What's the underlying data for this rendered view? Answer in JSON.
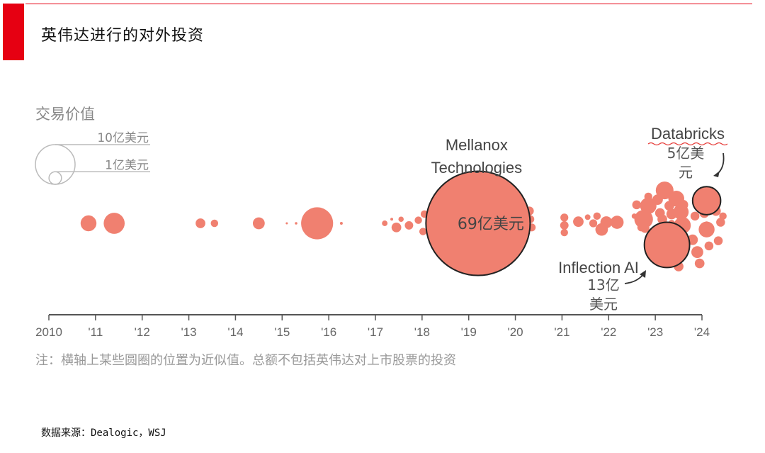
{
  "page": {
    "title": "英伟达进行的对外投资"
  },
  "source": "数据来源：Dealogic，WSJ",
  "colors": {
    "accent": "#e60012",
    "bubble": "#f08070",
    "outline": "#222222",
    "axis": "#555555",
    "text_gray": "#888888",
    "legend_gray": "#bbbbbb"
  },
  "chart_data": {
    "type": "bubble",
    "title": "",
    "size_label": "交易价值",
    "size_legend": [
      {
        "label": "10亿美元",
        "value_usd_bn": 1
      },
      {
        "label": "1亿美元",
        "value_usd_bn": 0.1
      }
    ],
    "xlim": [
      2010,
      2024
    ],
    "x_ticks": [
      "2010",
      "'11",
      "'12",
      "'13",
      "'14",
      "'15",
      "'16",
      "'17",
      "'18",
      "'19",
      "'20",
      "'21",
      "'22",
      "'23",
      "'24"
    ],
    "note": "注：横轴上某些圆圈的位置为近似值。总额不包括英伟达对上市股票的投资",
    "highlights": [
      {
        "name": "Mellanox Technologies",
        "name_lines": [
          "Mellanox",
          "Technologies"
        ],
        "value_label": "69亿美元",
        "x": 2019.2,
        "y": 0,
        "value_usd_bn": 6.9
      },
      {
        "name": "Databricks",
        "name_lines": [
          "Databricks"
        ],
        "value_label": "5亿美元",
        "value_lines": [
          "5亿美",
          "元"
        ],
        "x": 2024.1,
        "y": 1.1,
        "value_usd_bn": 0.5
      },
      {
        "name": "Inflection AI",
        "name_lines": [
          "Inflection AI"
        ],
        "value_label": "13亿美元",
        "value_lines": [
          "13亿",
          "美元"
        ],
        "x": 2023.25,
        "y": -1.05,
        "value_usd_bn": 1.3
      }
    ],
    "deals": [
      {
        "x": 2010.85,
        "y": 0,
        "value_usd_bn": 0.16
      },
      {
        "x": 2011.4,
        "y": 0,
        "value_usd_bn": 0.28
      },
      {
        "x": 2013.25,
        "y": 0,
        "value_usd_bn": 0.06
      },
      {
        "x": 2013.55,
        "y": 0,
        "value_usd_bn": 0.035
      },
      {
        "x": 2014.5,
        "y": 0,
        "value_usd_bn": 0.09
      },
      {
        "x": 2015.1,
        "y": 0,
        "value_usd_bn": 0.003
      },
      {
        "x": 2015.3,
        "y": 0,
        "value_usd_bn": 0.004
      },
      {
        "x": 2015.75,
        "y": 0,
        "value_usd_bn": 0.65
      },
      {
        "x": 2016.27,
        "y": 0,
        "value_usd_bn": 0.005
      },
      {
        "x": 2017.2,
        "y": 0,
        "value_usd_bn": 0.02
      },
      {
        "x": 2017.35,
        "y": 0.2,
        "value_usd_bn": 0.005
      },
      {
        "x": 2017.45,
        "y": -0.2,
        "value_usd_bn": 0.06
      },
      {
        "x": 2017.55,
        "y": 0.2,
        "value_usd_bn": 0.018
      },
      {
        "x": 2017.72,
        "y": -0.1,
        "value_usd_bn": 0.045
      },
      {
        "x": 2017.92,
        "y": 0.15,
        "value_usd_bn": 0.035
      },
      {
        "x": 2018.02,
        "y": -0.4,
        "value_usd_bn": 0.035
      },
      {
        "x": 2018.05,
        "y": 0.45,
        "value_usd_bn": 0.035
      },
      {
        "x": 2020.3,
        "y": 0.6,
        "value_usd_bn": 0.05
      },
      {
        "x": 2020.32,
        "y": 0.2,
        "value_usd_bn": 0.04
      },
      {
        "x": 2020.35,
        "y": -0.2,
        "value_usd_bn": 0.04
      },
      {
        "x": 2020.05,
        "y": -1.0,
        "value_usd_bn": 0.025
      },
      {
        "x": 2021.05,
        "y": 0.28,
        "value_usd_bn": 0.04
      },
      {
        "x": 2021.05,
        "y": -0.1,
        "value_usd_bn": 0.045
      },
      {
        "x": 2021.05,
        "y": -0.45,
        "value_usd_bn": 0.035
      },
      {
        "x": 2021.35,
        "y": 0.08,
        "value_usd_bn": 0.07
      },
      {
        "x": 2021.55,
        "y": 0.3,
        "value_usd_bn": 0.02
      },
      {
        "x": 2021.67,
        "y": 0.0,
        "value_usd_bn": 0.04
      },
      {
        "x": 2021.75,
        "y": 0.35,
        "value_usd_bn": 0.035
      },
      {
        "x": 2021.85,
        "y": -0.3,
        "value_usd_bn": 0.1
      },
      {
        "x": 2021.95,
        "y": 0.05,
        "value_usd_bn": 0.09
      },
      {
        "x": 2022.18,
        "y": 0.05,
        "value_usd_bn": 0.11
      },
      {
        "x": 2022.55,
        "y": 0.35,
        "value_usd_bn": 0.018
      },
      {
        "x": 2022.6,
        "y": 0.9,
        "value_usd_bn": 0.05
      },
      {
        "x": 2022.7,
        "y": -0.2,
        "value_usd_bn": 0.04
      },
      {
        "x": 2022.75,
        "y": 0.2,
        "value_usd_bn": 0.22
      },
      {
        "x": 2022.78,
        "y": -0.25,
        "value_usd_bn": 0.05
      },
      {
        "x": 2022.85,
        "y": 0.85,
        "value_usd_bn": 0.17
      },
      {
        "x": 2022.85,
        "y": 1.3,
        "value_usd_bn": 0.04
      },
      {
        "x": 2022.92,
        "y": -0.45,
        "value_usd_bn": 0.03
      },
      {
        "x": 2023.05,
        "y": 1.15,
        "value_usd_bn": 0.07
      },
      {
        "x": 2023.1,
        "y": 0.5,
        "value_usd_bn": 0.06
      },
      {
        "x": 2023.15,
        "y": 0.2,
        "value_usd_bn": 0.06
      },
      {
        "x": 2023.18,
        "y": -0.2,
        "value_usd_bn": 0.09
      },
      {
        "x": 2023.2,
        "y": 1.6,
        "value_usd_bn": 0.2
      },
      {
        "x": 2023.3,
        "y": 0.85,
        "value_usd_bn": 0.06
      },
      {
        "x": 2023.35,
        "y": 0.45,
        "value_usd_bn": 0.07
      },
      {
        "x": 2023.35,
        "y": 0.0,
        "value_usd_bn": 0.03
      },
      {
        "x": 2023.45,
        "y": 1.2,
        "value_usd_bn": 0.16
      },
      {
        "x": 2023.55,
        "y": 0.55,
        "value_usd_bn": 0.15
      },
      {
        "x": 2023.58,
        "y": -0.1,
        "value_usd_bn": 0.18
      },
      {
        "x": 2023.6,
        "y": 0.9,
        "value_usd_bn": 0.06
      },
      {
        "x": 2023.45,
        "y": -1.75,
        "value_usd_bn": 0.1
      },
      {
        "x": 2023.3,
        "y": -1.85,
        "value_usd_bn": 0.025
      },
      {
        "x": 2023.5,
        "y": -2.1,
        "value_usd_bn": 0.06
      },
      {
        "x": 2023.8,
        "y": -0.8,
        "value_usd_bn": 0.07
      },
      {
        "x": 2023.85,
        "y": 0.35,
        "value_usd_bn": 0.05
      },
      {
        "x": 2023.9,
        "y": -1.4,
        "value_usd_bn": 0.09
      },
      {
        "x": 2023.95,
        "y": -1.95,
        "value_usd_bn": 0.06
      },
      {
        "x": 2024.05,
        "y": 0.5,
        "value_usd_bn": 0.06
      },
      {
        "x": 2024.1,
        "y": 0.0,
        "value_usd_bn": 0.01
      },
      {
        "x": 2024.1,
        "y": -0.3,
        "value_usd_bn": 0.16
      },
      {
        "x": 2024.15,
        "y": -1.1,
        "value_usd_bn": 0.05
      },
      {
        "x": 2024.3,
        "y": 0.6,
        "value_usd_bn": 0.06
      },
      {
        "x": 2024.35,
        "y": -0.85,
        "value_usd_bn": 0.05
      },
      {
        "x": 2024.4,
        "y": 0.05,
        "value_usd_bn": 0.05
      },
      {
        "x": 2024.45,
        "y": 0.35,
        "value_usd_bn": 0.035
      }
    ]
  }
}
